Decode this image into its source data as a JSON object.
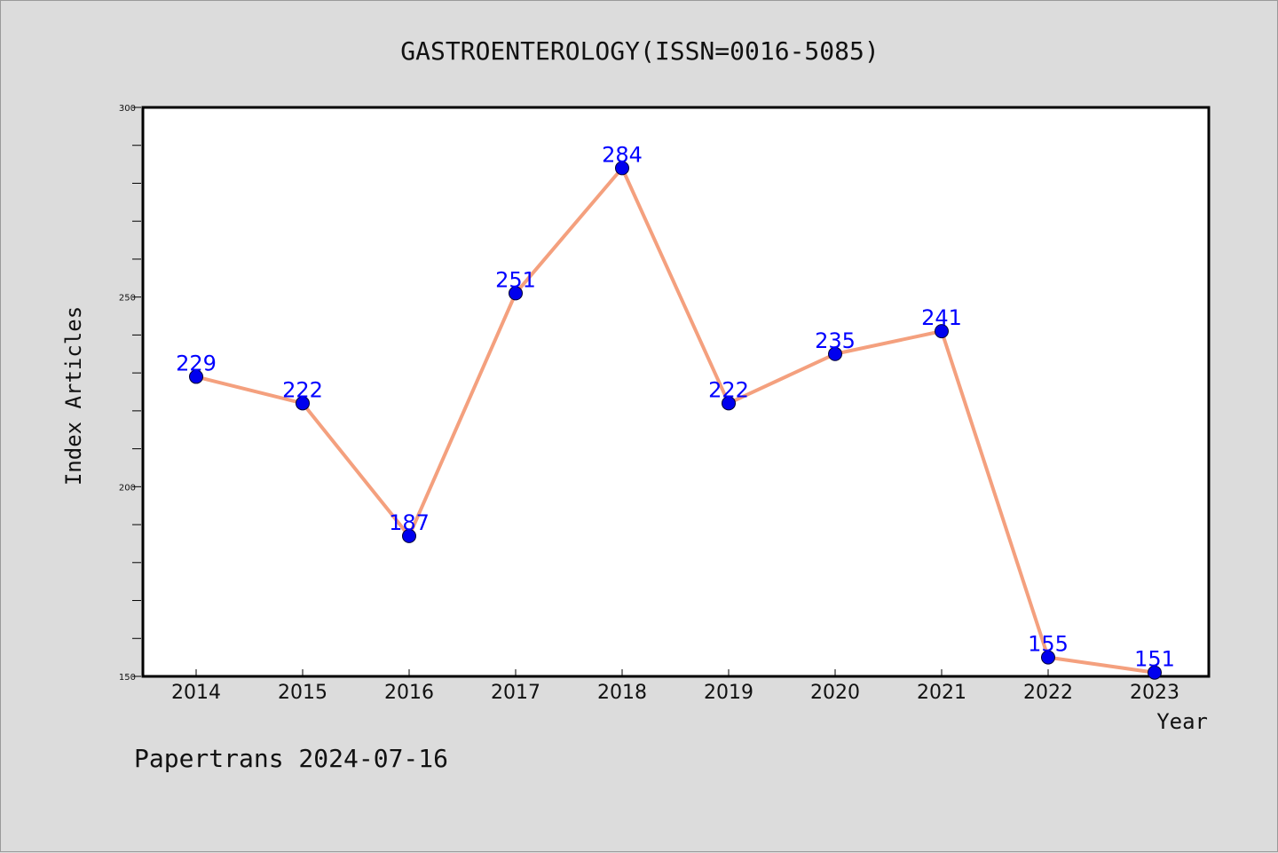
{
  "footer": "Papertrans 2024-07-16",
  "chart_data": {
    "type": "line",
    "title": "GASTROENTEROLOGY(ISSN=0016-5085)",
    "xlabel": "Year",
    "ylabel": "Index Articles",
    "categories": [
      "2014",
      "2015",
      "2016",
      "2017",
      "2018",
      "2019",
      "2020",
      "2021",
      "2022",
      "2023"
    ],
    "values": [
      229,
      222,
      187,
      251,
      284,
      222,
      235,
      241,
      155,
      151
    ],
    "yticks": [
      150,
      200,
      250,
      300
    ],
    "ylim": [
      150,
      300
    ],
    "grid": false,
    "legend": "none",
    "colors": {
      "line": "#f4a07e",
      "marker": "#0000ee",
      "label": "#0000ff",
      "plot_bg": "#ffffff",
      "page_bg": "#dcdcdc"
    }
  }
}
